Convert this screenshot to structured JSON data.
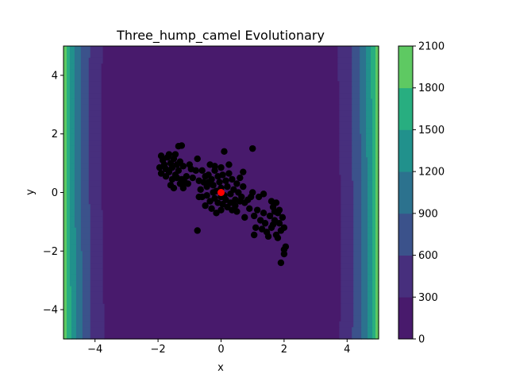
{
  "chart_data": {
    "type": "scatter",
    "title": "Three_hump_camel Evolutionary",
    "xlabel": "x",
    "ylabel": "y",
    "xlim": [
      -5,
      5
    ],
    "ylim": [
      -5,
      5
    ],
    "xticks": [
      -4,
      -2,
      0,
      2,
      4
    ],
    "yticks": [
      -4,
      -2,
      0,
      2,
      4
    ],
    "grid": false,
    "background": "filled contour of the three-hump camel function",
    "colorbar": {
      "ticks": [
        0,
        300,
        600,
        900,
        1200,
        1500,
        1800,
        2100
      ],
      "colors": [
        "#481a6c",
        "#472f7d",
        "#3b528b",
        "#2c728e",
        "#21918c",
        "#28ae80",
        "#5ec962",
        "#addc30"
      ]
    },
    "series": [
      {
        "marker_color": "#000000",
        "points": [
          [
            -1.9,
            1.25
          ],
          [
            -1.85,
            1.1
          ],
          [
            -1.8,
            0.95
          ],
          [
            -1.75,
            0.8
          ],
          [
            -1.7,
            1.2
          ],
          [
            -1.65,
            0.7
          ],
          [
            -1.6,
            1.0
          ],
          [
            -1.55,
            0.85
          ],
          [
            -1.5,
            1.15
          ],
          [
            -1.45,
            0.6
          ],
          [
            -1.4,
            0.95
          ],
          [
            -1.35,
            0.75
          ],
          [
            -1.3,
            1.05
          ],
          [
            -1.25,
            0.45
          ],
          [
            -1.2,
            0.9
          ],
          [
            -1.15,
            0.35
          ],
          [
            -1.95,
            0.85
          ],
          [
            -1.9,
            0.65
          ],
          [
            -1.75,
            0.55
          ],
          [
            -1.55,
            0.45
          ],
          [
            -1.6,
            0.25
          ],
          [
            -1.4,
            0.5
          ],
          [
            -1.3,
            0.3
          ],
          [
            -1.65,
            1.3
          ],
          [
            -1.45,
            1.3
          ],
          [
            -1.25,
            1.6
          ],
          [
            -1.35,
            1.58
          ],
          [
            -1.1,
            0.55
          ],
          [
            -1.05,
            0.3
          ],
          [
            -1.2,
            0.15
          ],
          [
            -1.5,
            0.15
          ],
          [
            -1.0,
            0.95
          ],
          [
            -0.95,
            0.8
          ],
          [
            -0.75,
            1.15
          ],
          [
            -0.8,
            0.75
          ],
          [
            -0.9,
            0.5
          ],
          [
            -0.7,
            0.4
          ],
          [
            -0.65,
            0.1
          ],
          [
            -0.6,
            0.75
          ],
          [
            -0.5,
            0.55
          ],
          [
            -0.55,
            0.35
          ],
          [
            -0.45,
            0.2
          ],
          [
            -0.4,
            0.6
          ],
          [
            -0.35,
            0.95
          ],
          [
            -0.3,
            0.45
          ],
          [
            -0.25,
            0.25
          ],
          [
            -0.2,
            0.75
          ],
          [
            -0.15,
            0.05
          ],
          [
            -0.1,
            0.55
          ],
          [
            -0.05,
            0.35
          ],
          [
            0.0,
            0.15
          ],
          [
            0.05,
            0.6
          ],
          [
            0.1,
            -0.1
          ],
          [
            0.15,
            0.4
          ],
          [
            0.2,
            0.2
          ],
          [
            0.25,
            0.65
          ],
          [
            0.3,
            -0.05
          ],
          [
            0.35,
            0.45
          ],
          [
            0.4,
            0.1
          ],
          [
            0.45,
            -0.25
          ],
          [
            0.5,
            0.3
          ],
          [
            0.55,
            0.0
          ],
          [
            0.6,
            0.5
          ],
          [
            0.65,
            -0.15
          ],
          [
            0.7,
            0.2
          ],
          [
            0.75,
            -0.35
          ],
          [
            -0.6,
            -0.15
          ],
          [
            -0.45,
            -0.1
          ],
          [
            -0.35,
            -0.3
          ],
          [
            -0.25,
            0.0
          ],
          [
            -0.2,
            -0.2
          ],
          [
            -0.1,
            -0.35
          ],
          [
            0.0,
            -0.15
          ],
          [
            0.05,
            -0.4
          ],
          [
            0.15,
            -0.25
          ],
          [
            0.2,
            -0.5
          ],
          [
            0.3,
            -0.35
          ],
          [
            0.35,
            -0.6
          ],
          [
            0.45,
            -0.45
          ],
          [
            0.5,
            -0.65
          ],
          [
            0.6,
            -0.3
          ],
          [
            -0.3,
            -0.55
          ],
          [
            -0.15,
            -0.7
          ],
          [
            0.0,
            -0.6
          ],
          [
            -0.2,
            0.9
          ],
          [
            0.0,
            0.85
          ],
          [
            0.25,
            0.95
          ],
          [
            -0.4,
            0.35
          ],
          [
            -0.7,
            -0.15
          ],
          [
            -0.5,
            -0.45
          ],
          [
            0.1,
            1.4
          ],
          [
            0.7,
            0.7
          ],
          [
            1.0,
            1.5
          ],
          [
            -0.75,
            -1.3
          ],
          [
            0.85,
            -0.25
          ],
          [
            0.9,
            -0.55
          ],
          [
            0.75,
            -0.85
          ],
          [
            1.0,
            0.0
          ],
          [
            1.05,
            -0.8
          ],
          [
            1.1,
            -1.2
          ],
          [
            1.05,
            -1.45
          ],
          [
            1.15,
            -0.6
          ],
          [
            1.25,
            -0.95
          ],
          [
            1.35,
            -0.7
          ],
          [
            1.3,
            -1.25
          ],
          [
            1.4,
            -1.05
          ],
          [
            1.45,
            -1.35
          ],
          [
            1.55,
            -0.8
          ],
          [
            1.6,
            -1.2
          ],
          [
            1.65,
            -0.5
          ],
          [
            1.7,
            -0.95
          ],
          [
            1.75,
            -1.45
          ],
          [
            1.8,
            -0.7
          ],
          [
            1.85,
            -1.05
          ],
          [
            1.9,
            -1.3
          ],
          [
            1.95,
            -0.85
          ],
          [
            2.0,
            -1.2
          ],
          [
            1.6,
            -0.3
          ],
          [
            1.7,
            -0.65
          ],
          [
            1.8,
            -1.55
          ],
          [
            1.5,
            -1.5
          ],
          [
            1.65,
            -1.1
          ],
          [
            1.75,
            -0.35
          ],
          [
            1.85,
            -0.6
          ],
          [
            1.35,
            -0.05
          ],
          [
            1.2,
            -0.15
          ],
          [
            0.95,
            -0.15
          ],
          [
            2.0,
            -1.95
          ],
          [
            2.0,
            -2.1
          ],
          [
            1.9,
            -2.4
          ],
          [
            2.05,
            -1.85
          ]
        ]
      },
      {
        "marker_color": "#ff0000",
        "points": [
          [
            0.0,
            0.0
          ]
        ]
      }
    ]
  }
}
